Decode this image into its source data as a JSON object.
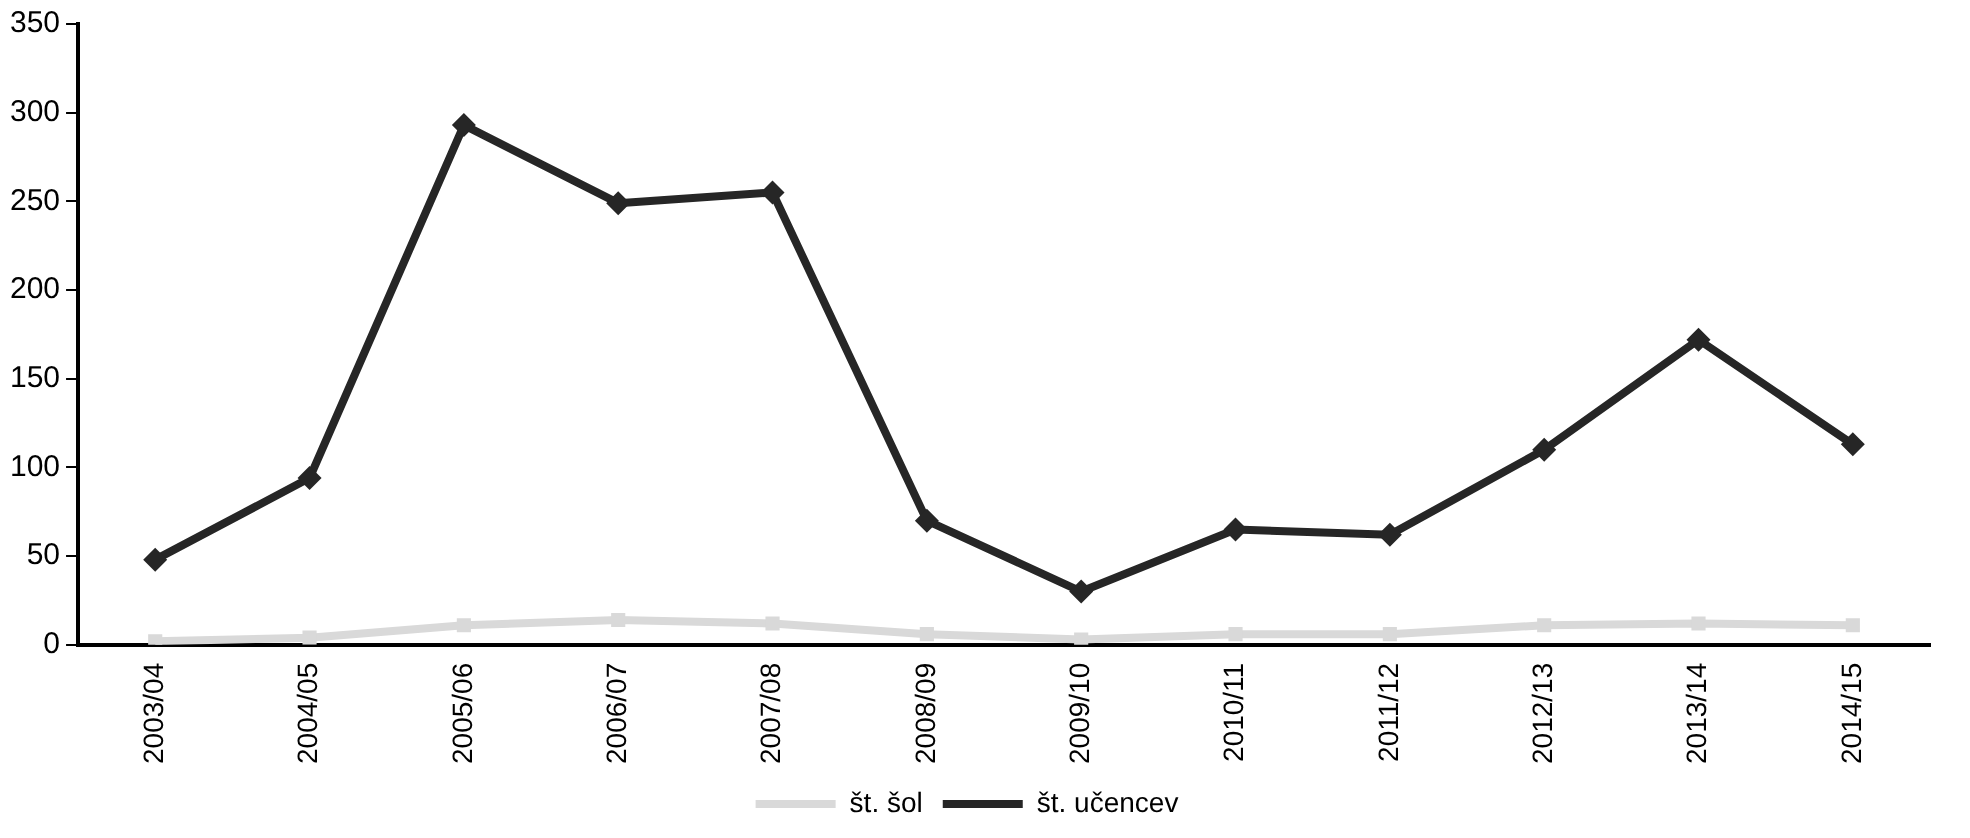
{
  "chart_data": {
    "type": "line",
    "categories": [
      "2003/04",
      "2004/05",
      "2005/06",
      "2006/07",
      "2007/08",
      "2008/09",
      "2009/10",
      "2010/11",
      "2011/12",
      "2012/13",
      "2013/14",
      "2014/15"
    ],
    "series": [
      {
        "name": "št. šol",
        "color": "#d9d9d9",
        "marker": "square",
        "values": [
          2,
          4,
          11,
          14,
          12,
          6,
          3,
          6,
          6,
          11,
          12,
          11
        ]
      },
      {
        "name": "št. učencev",
        "color": "#262626",
        "marker": "diamond",
        "values": [
          48,
          94,
          293,
          249,
          255,
          70,
          30,
          65,
          62,
          110,
          172,
          113
        ]
      }
    ],
    "ylim": [
      0,
      350
    ],
    "yticks": [
      0,
      50,
      100,
      150,
      200,
      250,
      300,
      350
    ],
    "grid": false,
    "legend": "bottom"
  }
}
